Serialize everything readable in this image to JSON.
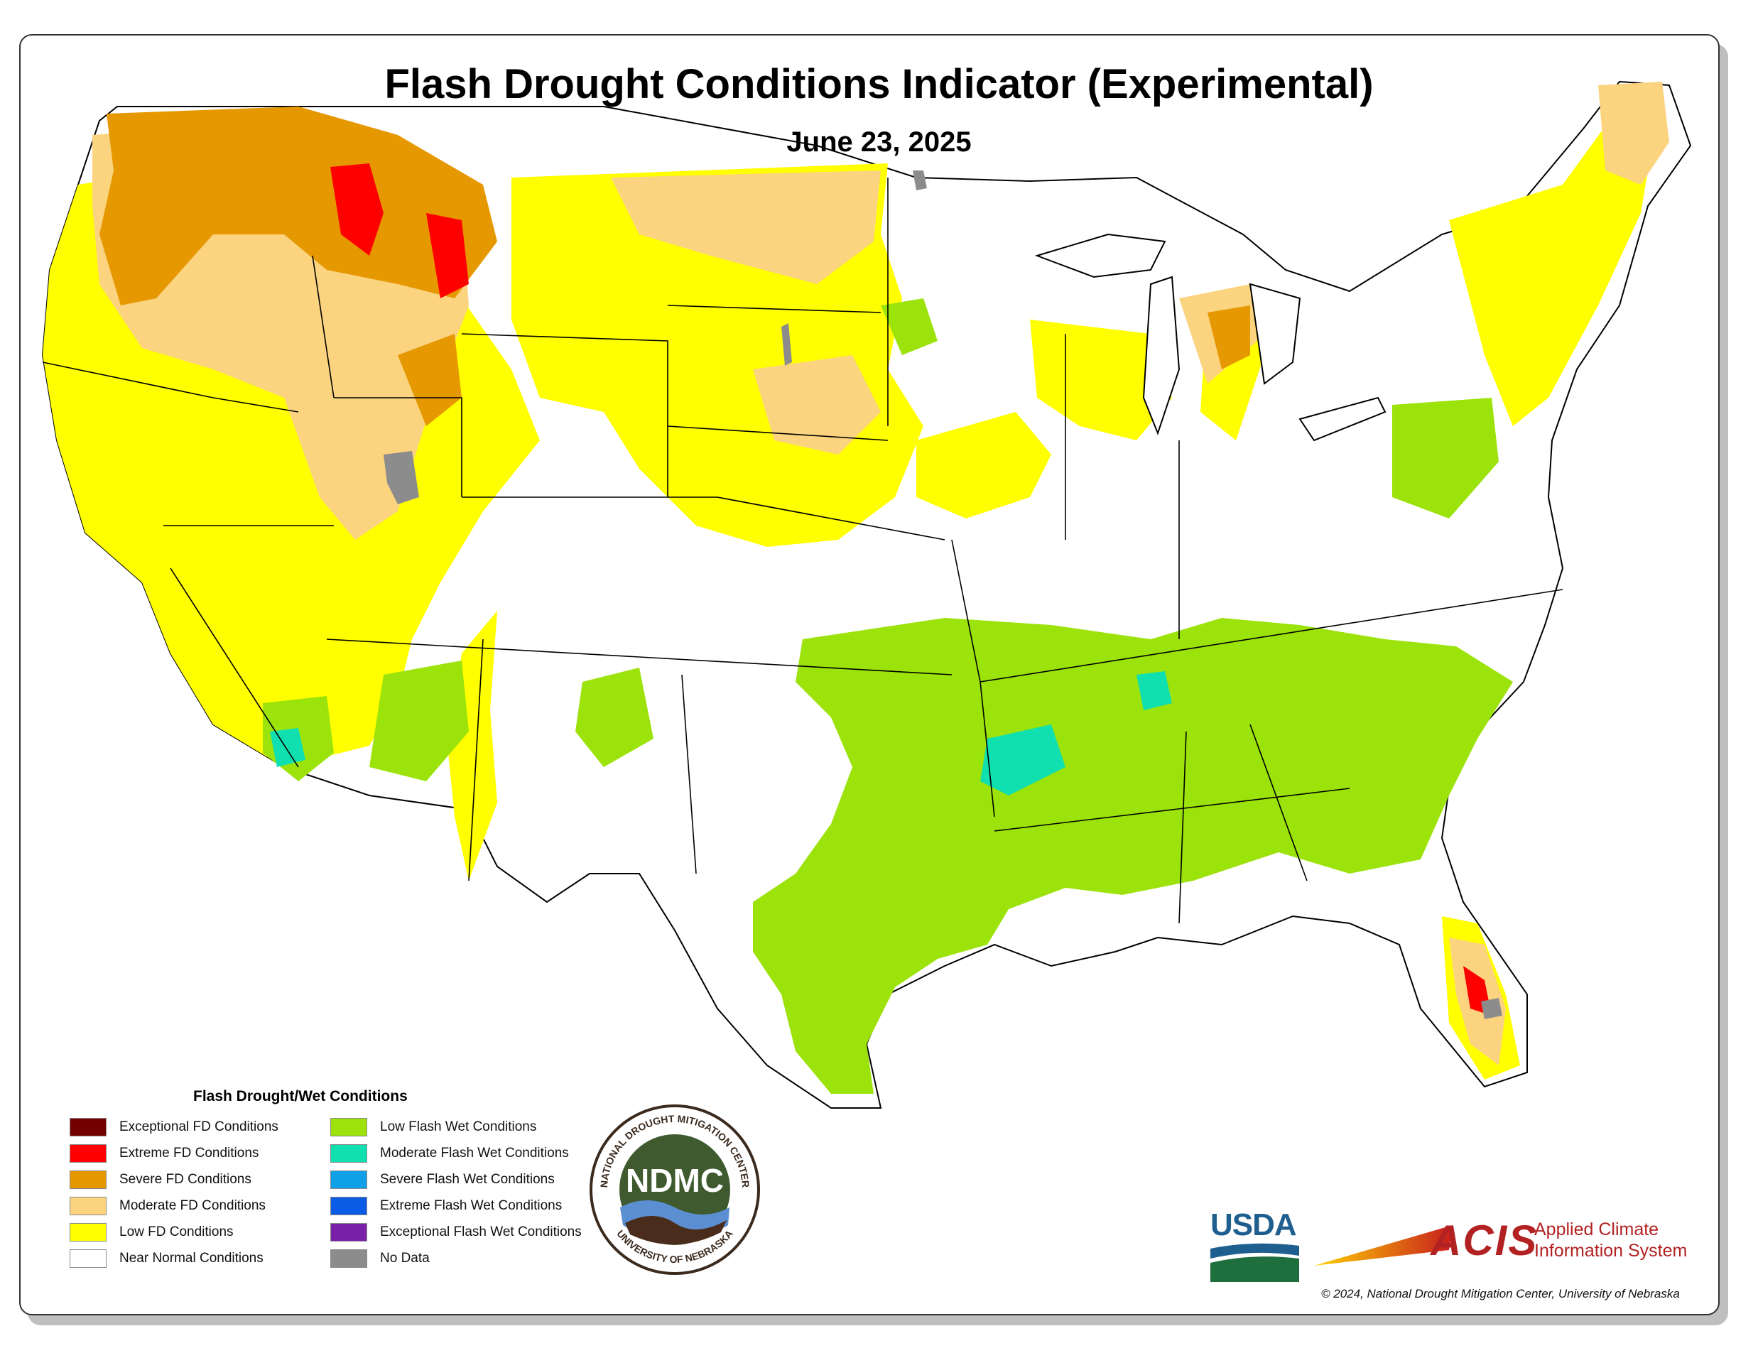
{
  "title": "Flash Drought Conditions Indicator (Experimental)",
  "date": "June 23, 2025",
  "legend": {
    "title": "Flash Drought/Wet Conditions",
    "left": [
      {
        "label": "Exceptional FD Conditions",
        "color": "#730000"
      },
      {
        "label": "Extreme FD Conditions",
        "color": "#ff0000"
      },
      {
        "label": "Severe FD Conditions",
        "color": "#e69800"
      },
      {
        "label": "Moderate FD Conditions",
        "color": "#fcd37f"
      },
      {
        "label": "Low FD Conditions",
        "color": "#ffff00"
      },
      {
        "label": "Near Normal Conditions",
        "color": "#ffffff"
      }
    ],
    "right": [
      {
        "label": "Low Flash Wet Conditions",
        "color": "#9be30a"
      },
      {
        "label": "Moderate Flash Wet Conditions",
        "color": "#10e0b0"
      },
      {
        "label": "Severe Flash Wet Conditions",
        "color": "#10a0e8"
      },
      {
        "label": "Extreme Flash Wet Conditions",
        "color": "#0a5be6"
      },
      {
        "label": "Exceptional Flash Wet Conditions",
        "color": "#7a1fa8"
      },
      {
        "label": "No Data",
        "color": "#8c8c8c"
      }
    ]
  },
  "ndmc": {
    "abbr": "NDMC",
    "ring_top": "NATIONAL DROUGHT MITIGATION CENTER",
    "ring_bottom": "UNIVERSITY OF NEBRASKA"
  },
  "usda": "USDA",
  "acis": {
    "abbr": "ACIS",
    "line1": "Applied Climate",
    "line2": "Information System"
  },
  "copyright": "© 2024, National Drought Mitigation Center, University of Nebraska"
}
